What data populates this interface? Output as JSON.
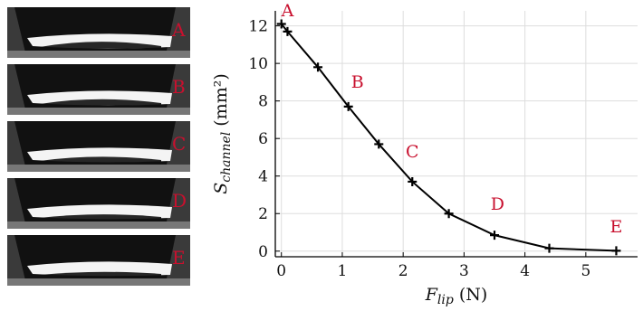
{
  "photo_labels": [
    "A",
    "B",
    "C",
    "D",
    "E"
  ],
  "colors": {
    "label": "#c8102e",
    "curve": "#000000",
    "grid": "#dddddd",
    "photo_bg": "#3a3a3a",
    "photo_dark": "#111111",
    "photo_bright": "#f4f4f4"
  },
  "chart_data": {
    "type": "line",
    "xlabel": "F_lip (N)",
    "xlabel_main": "F",
    "xlabel_sub": "lip",
    "xlabel_unit": " (N)",
    "ylabel": "S_channel (mm²)",
    "ylabel_main": "S",
    "ylabel_sub": "channel",
    "ylabel_unit": " (mm²)",
    "xlim": [
      -0.1,
      5.85
    ],
    "ylim": [
      -0.3,
      12.8
    ],
    "xticks": [
      0,
      1,
      2,
      3,
      4,
      5
    ],
    "yticks": [
      0,
      2,
      4,
      6,
      8,
      10,
      12
    ],
    "grid": true,
    "series": [
      {
        "x": [
          0.0,
          0.1,
          0.6,
          1.1,
          1.6,
          2.15,
          2.75,
          3.5,
          4.4,
          5.5
        ],
        "y": [
          12.1,
          11.7,
          9.8,
          7.7,
          5.7,
          3.7,
          2.0,
          0.85,
          0.15,
          0.02
        ]
      }
    ],
    "annotations": [
      {
        "text": "A",
        "x": 0.1,
        "y": 12.5
      },
      {
        "text": "B",
        "x": 1.25,
        "y": 8.7
      },
      {
        "text": "C",
        "x": 2.15,
        "y": 5.0
      },
      {
        "text": "D",
        "x": 3.55,
        "y": 2.2
      },
      {
        "text": "E",
        "x": 5.5,
        "y": 1.0
      }
    ]
  }
}
